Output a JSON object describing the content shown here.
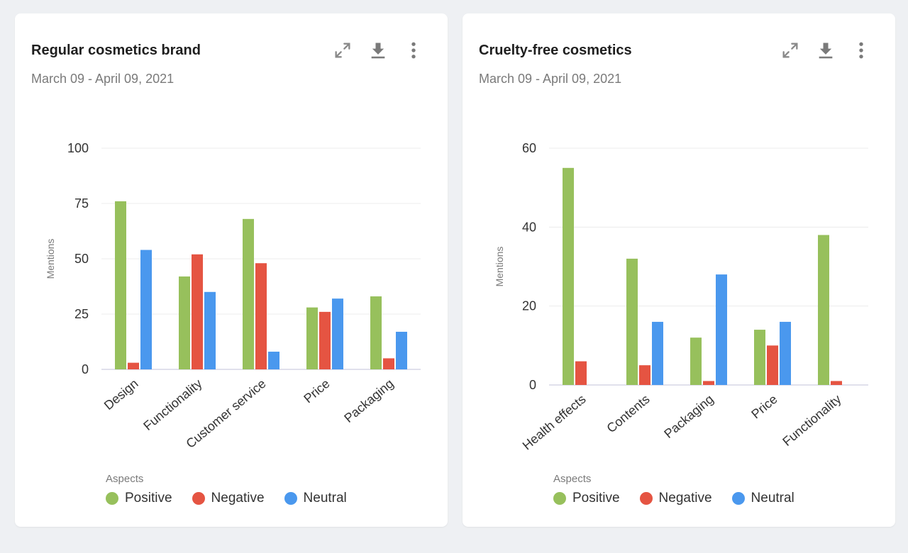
{
  "colors": {
    "positive": "#97c05c",
    "negative": "#e55442",
    "neutral": "#4a98ee",
    "grid": "#ececec",
    "axis": "#d6d6e6"
  },
  "icons": {
    "expand": "expand-icon",
    "download": "download-icon",
    "more": "more-vertical-icon"
  },
  "chart_data": [
    {
      "type": "bar",
      "title": "Regular cosmetics brand",
      "subtitle": "March 09 - April 09, 2021",
      "ylabel": "Mentions",
      "ylim": [
        0,
        100
      ],
      "yticks": [
        0,
        25,
        50,
        75,
        100
      ],
      "categories": [
        "Design",
        "Functionality",
        "Customer service",
        "Price",
        "Packaging"
      ],
      "series": [
        {
          "name": "Positive",
          "values": [
            76,
            42,
            68,
            28,
            33
          ]
        },
        {
          "name": "Negative",
          "values": [
            3,
            52,
            48,
            26,
            5
          ]
        },
        {
          "name": "Neutral",
          "values": [
            54,
            35,
            8,
            32,
            17
          ]
        }
      ],
      "legend_title": "Aspects",
      "legend_position": "bottom-left",
      "grid": true
    },
    {
      "type": "bar",
      "title": "Cruelty-free cosmetics",
      "subtitle": "March 09 - April 09, 2021",
      "ylabel": "Mentions",
      "ylim": [
        0,
        60
      ],
      "yticks": [
        0,
        20,
        40,
        60
      ],
      "categories": [
        "Health effects",
        "Contents",
        "Packaging",
        "Price",
        "Functionality"
      ],
      "series": [
        {
          "name": "Positive",
          "values": [
            55,
            32,
            12,
            14,
            38
          ]
        },
        {
          "name": "Negative",
          "values": [
            6,
            5,
            1,
            10,
            1
          ]
        },
        {
          "name": "Neutral",
          "values": [
            0,
            16,
            28,
            16,
            0
          ]
        }
      ],
      "legend_title": "Aspects",
      "legend_position": "bottom-left",
      "grid": true
    }
  ]
}
